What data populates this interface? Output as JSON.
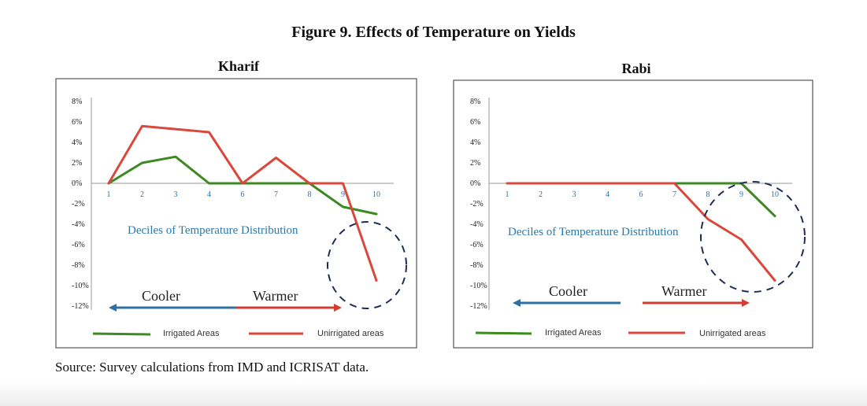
{
  "figure_title": "Figure 9. Effects of Temperature on Yields",
  "source": "Source: Survey calculations from IMD and ICRISAT data.",
  "colors": {
    "irrigated": "#3d8a22",
    "unirrigated": "#d9483b",
    "arrow_blue": "#2e6fa5",
    "arrow_red": "#d13d30",
    "circle": "#1f2d55"
  },
  "chart_data": [
    {
      "type": "line",
      "title": "Kharif",
      "x_tick_labels": [
        "1",
        "2",
        "3",
        "4",
        "6",
        "7",
        "8",
        "9",
        "10"
      ],
      "y_tick_labels": [
        "8%",
        "6%",
        "4%",
        "2%",
        "0%",
        "-2%",
        "-4%",
        "-6%",
        "-8%",
        "-10%",
        "-12%"
      ],
      "ylim": [
        -12,
        8
      ],
      "xlabel": "Deciles of Temperature Distribution",
      "series": [
        {
          "name": "Irrigated Areas",
          "values": [
            0,
            2.0,
            2.6,
            0,
            0,
            0,
            0,
            -2.3,
            -3.0
          ]
        },
        {
          "name": "Unirrigated areas",
          "values": [
            0,
            5.6,
            5.3,
            5.0,
            0,
            2.5,
            0,
            0,
            -9.5
          ]
        }
      ],
      "annotations": {
        "cooler": "Cooler",
        "warmer": "Warmer"
      },
      "legend_position": "bottom",
      "grid": false
    },
    {
      "type": "line",
      "title": "Rabi",
      "x_tick_labels": [
        "1",
        "2",
        "3",
        "4",
        "6",
        "7",
        "8",
        "9",
        "10"
      ],
      "y_tick_labels": [
        "8%",
        "6%",
        "4%",
        "2%",
        "0%",
        "-2%",
        "-4%",
        "-6%",
        "-8%",
        "-10%",
        "-12%"
      ],
      "ylim": [
        -12,
        8
      ],
      "xlabel": "Deciles of Temperature Distribution",
      "series": [
        {
          "name": "Irrigated Areas",
          "values": [
            0,
            0,
            0,
            0,
            0,
            0,
            0,
            0,
            -3.2
          ]
        },
        {
          "name": "Unirrigated areas",
          "values": [
            0,
            0,
            0,
            0,
            0,
            0,
            -3.5,
            -5.5,
            -9.5
          ]
        }
      ],
      "annotations": {
        "cooler": "Cooler",
        "warmer": "Warmer"
      },
      "legend_position": "bottom",
      "grid": false
    }
  ]
}
